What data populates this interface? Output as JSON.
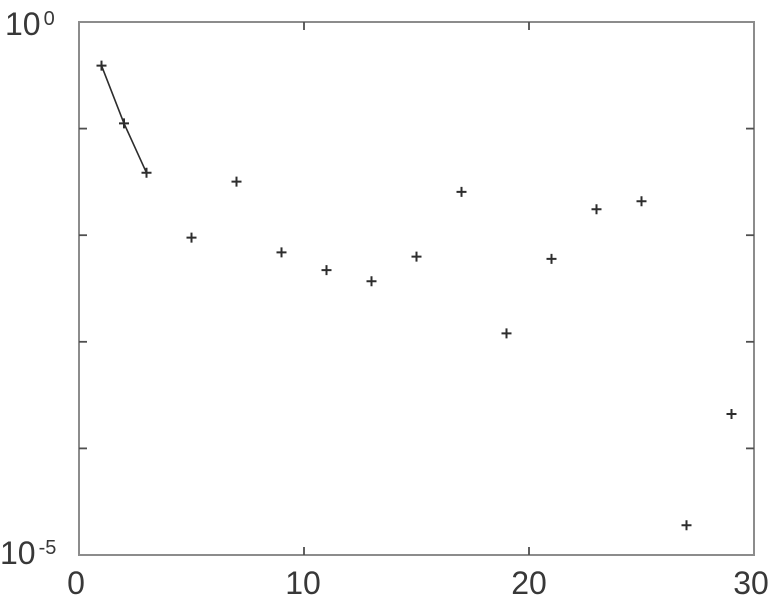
{
  "figure": {
    "background": "#ffffff",
    "axis_color": "#8c8c8c",
    "tick_color": "#4f4f4f",
    "text_color": "#383838",
    "marker_color": "#2d2d2d",
    "line_color": "#2d2d2d"
  },
  "chart_data": {
    "type": "scatter",
    "x_scale": "linear",
    "y_scale": "log",
    "xlim": [
      0,
      30
    ],
    "ylim": [
      1e-05,
      1
    ],
    "grid": false,
    "marker": "plus",
    "x_ticks": [
      0,
      10,
      20,
      30
    ],
    "x_tick_labels": [
      "0",
      "10",
      "20",
      "30"
    ],
    "y_unlabeled_tick_decades": [
      -1,
      -2,
      -3,
      -4
    ],
    "y_axis_labels": [
      {
        "base": "10",
        "exp": "0"
      },
      {
        "base": "10",
        "exp": "-5"
      }
    ],
    "series": [
      {
        "name": "markers",
        "x": [
          1,
          2,
          3,
          5,
          7,
          9,
          11,
          13,
          15,
          17,
          19,
          21,
          23,
          25,
          27,
          29
        ],
        "y": [
          0.39,
          0.112,
          0.0385,
          0.0095,
          0.0318,
          0.0069,
          0.0047,
          0.0037,
          0.0063,
          0.0255,
          0.0012,
          0.006,
          0.0175,
          0.0208,
          1.9e-05,
          0.00021
        ],
        "line_through_first_n": 3
      }
    ]
  }
}
